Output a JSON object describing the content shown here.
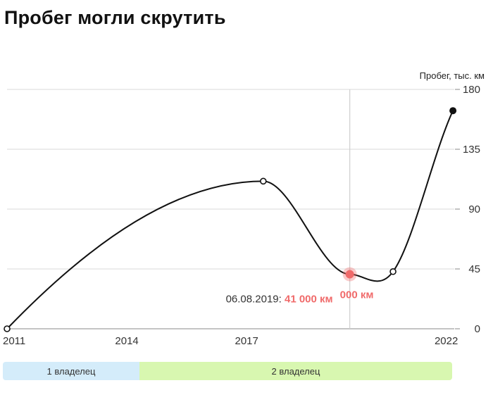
{
  "title": "Пробег могли скрутить",
  "chart_data": {
    "type": "line",
    "ylabel": "Пробег, тыс. км",
    "ylim": [
      0,
      180
    ],
    "y_ticks": [
      0,
      45,
      90,
      135,
      180
    ],
    "x_ticks": [
      "2011",
      "2014",
      "2017",
      "2022"
    ],
    "grid": true,
    "series": [
      {
        "x": [
          "2011-01",
          "2017-06",
          "2019-08",
          "2020-09",
          "2022-03"
        ],
        "y": [
          0,
          111,
          41,
          43,
          164
        ]
      }
    ],
    "highlight": {
      "date": "06.08.2019",
      "value": 41000,
      "value_text": "41 000 км",
      "ghost_text": "000 км"
    }
  },
  "owners": [
    {
      "label": "1 владелец",
      "color": "#d4ecfa"
    },
    {
      "label": "2 владелец",
      "color": "#d8f7b0"
    }
  ],
  "colors": {
    "line": "#111111",
    "grid": "#d9d9d9",
    "highlight": "#f06a6a"
  }
}
